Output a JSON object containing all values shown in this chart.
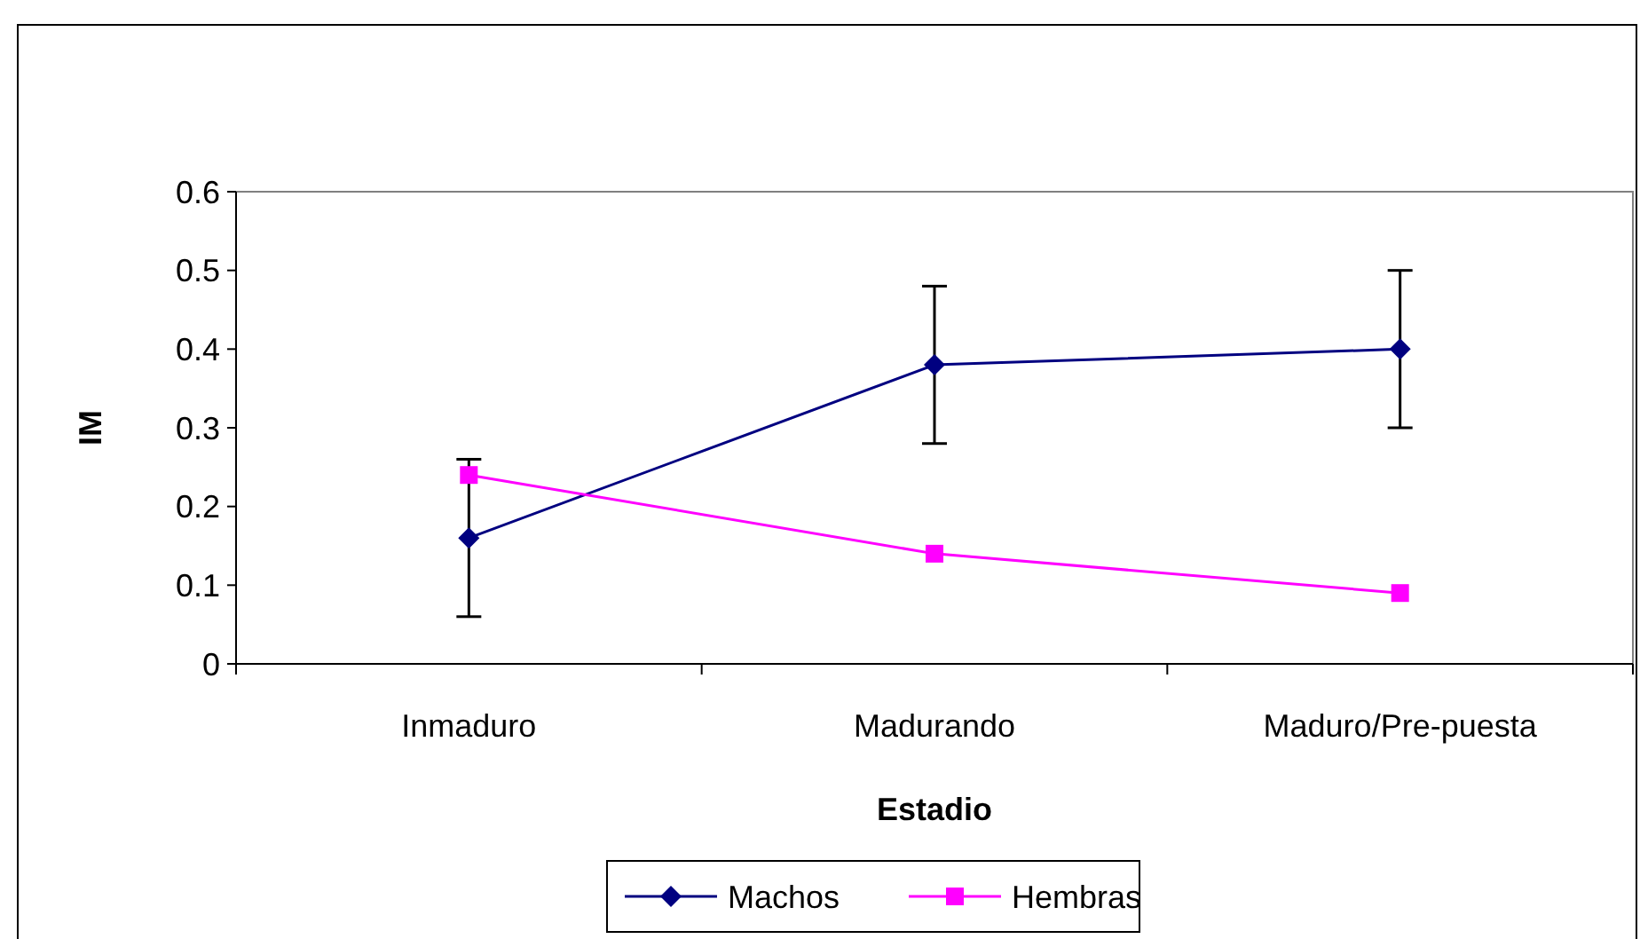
{
  "chart_data": {
    "type": "line",
    "xlabel": "Estadio",
    "ylabel": "IM",
    "categories": [
      "Inmaduro",
      "Madurando",
      "Maduro/Pre-puesta"
    ],
    "series": [
      {
        "name": "Machos",
        "color": "#000080",
        "marker": "diamond",
        "values": [
          0.16,
          0.38,
          0.4
        ],
        "errors": [
          0.1,
          0.1,
          0.1
        ]
      },
      {
        "name": "Hembras",
        "color": "#ff00ff",
        "marker": "square",
        "values": [
          0.24,
          0.14,
          0.09
        ]
      }
    ],
    "ylim": [
      0,
      0.6
    ],
    "yticks": [
      0,
      0.1,
      0.2,
      0.3,
      0.4,
      0.5,
      0.6
    ],
    "grid": false,
    "legend": "bottom"
  }
}
